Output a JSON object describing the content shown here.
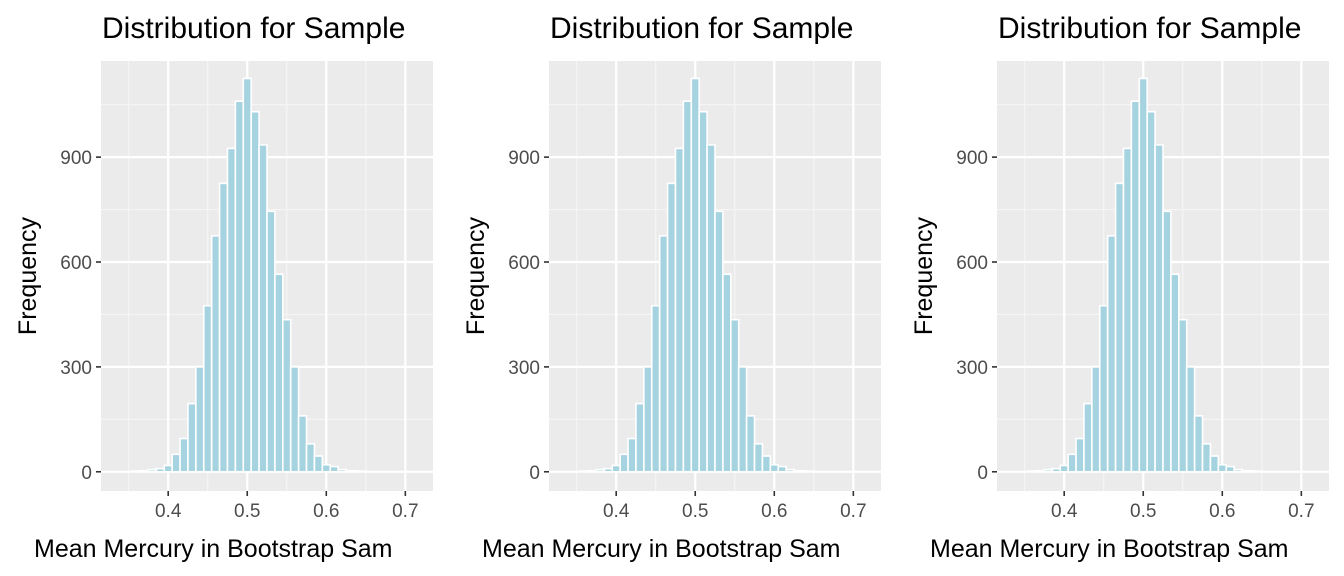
{
  "colors": {
    "panel_bg": "#ebebeb",
    "grid_major": "#ffffff",
    "grid_minor": "#f5f5f5",
    "bar_fill": "#a6d3e0",
    "bar_stroke": "#ffffff",
    "tick_color": "#4d4d4d"
  },
  "chart_data": [
    {
      "type": "bar",
      "title": "Distribution for Sample",
      "xlabel": "Mean Mercury in Bootstrap Sam",
      "ylabel": "Frequency",
      "xlim": [
        0.315,
        0.735
      ],
      "ylim": [
        -55,
        1175
      ],
      "xticks": [
        "0.4",
        "0.5",
        "0.6",
        "0.7"
      ],
      "yticks": [
        "0",
        "300",
        "600",
        "900"
      ],
      "grid": true,
      "bin_width": 0.01,
      "x": [
        0.36,
        0.37,
        0.38,
        0.39,
        0.4,
        0.41,
        0.42,
        0.43,
        0.44,
        0.45,
        0.46,
        0.47,
        0.48,
        0.49,
        0.5,
        0.51,
        0.52,
        0.53,
        0.54,
        0.55,
        0.56,
        0.57,
        0.58,
        0.59,
        0.6,
        0.61,
        0.62,
        0.63,
        0.64,
        0.65,
        0.66,
        0.67,
        0.68,
        0.69,
        0.7
      ],
      "values": [
        2,
        3,
        6,
        9,
        18,
        50,
        95,
        195,
        300,
        475,
        675,
        825,
        925,
        1060,
        1125,
        1030,
        935,
        745,
        565,
        435,
        300,
        160,
        80,
        45,
        20,
        15,
        6,
        3,
        2,
        1,
        0,
        0,
        0,
        0,
        0
      ]
    },
    {
      "type": "bar",
      "title": "Distribution for Sample",
      "xlabel": "Mean Mercury in Bootstrap Sam",
      "ylabel": "Frequency",
      "xlim": [
        0.315,
        0.735
      ],
      "ylim": [
        -55,
        1175
      ],
      "xticks": [
        "0.4",
        "0.5",
        "0.6",
        "0.7"
      ],
      "yticks": [
        "0",
        "300",
        "600",
        "900"
      ],
      "grid": true,
      "bin_width": 0.01,
      "x": [
        0.36,
        0.37,
        0.38,
        0.39,
        0.4,
        0.41,
        0.42,
        0.43,
        0.44,
        0.45,
        0.46,
        0.47,
        0.48,
        0.49,
        0.5,
        0.51,
        0.52,
        0.53,
        0.54,
        0.55,
        0.56,
        0.57,
        0.58,
        0.59,
        0.6,
        0.61,
        0.62,
        0.63,
        0.64,
        0.65,
        0.66,
        0.67,
        0.68,
        0.69,
        0.7
      ],
      "values": [
        2,
        3,
        6,
        9,
        18,
        50,
        95,
        195,
        300,
        475,
        675,
        825,
        925,
        1060,
        1125,
        1030,
        935,
        745,
        565,
        435,
        300,
        160,
        80,
        45,
        20,
        15,
        6,
        3,
        2,
        1,
        0,
        0,
        0,
        0,
        0
      ]
    },
    {
      "type": "bar",
      "title": "Distribution for Sample",
      "xlabel": "Mean Mercury in Bootstrap Sam",
      "ylabel": "Frequency",
      "xlim": [
        0.315,
        0.735
      ],
      "ylim": [
        -55,
        1175
      ],
      "xticks": [
        "0.4",
        "0.5",
        "0.6",
        "0.7"
      ],
      "yticks": [
        "0",
        "300",
        "600",
        "900"
      ],
      "grid": true,
      "bin_width": 0.01,
      "x": [
        0.36,
        0.37,
        0.38,
        0.39,
        0.4,
        0.41,
        0.42,
        0.43,
        0.44,
        0.45,
        0.46,
        0.47,
        0.48,
        0.49,
        0.5,
        0.51,
        0.52,
        0.53,
        0.54,
        0.55,
        0.56,
        0.57,
        0.58,
        0.59,
        0.6,
        0.61,
        0.62,
        0.63,
        0.64,
        0.65,
        0.66,
        0.67,
        0.68,
        0.69,
        0.7
      ],
      "values": [
        2,
        3,
        6,
        9,
        18,
        50,
        95,
        195,
        300,
        475,
        675,
        825,
        925,
        1060,
        1125,
        1030,
        935,
        745,
        565,
        435,
        300,
        160,
        80,
        45,
        20,
        15,
        6,
        3,
        2,
        1,
        0,
        0,
        0,
        0,
        0
      ]
    }
  ]
}
